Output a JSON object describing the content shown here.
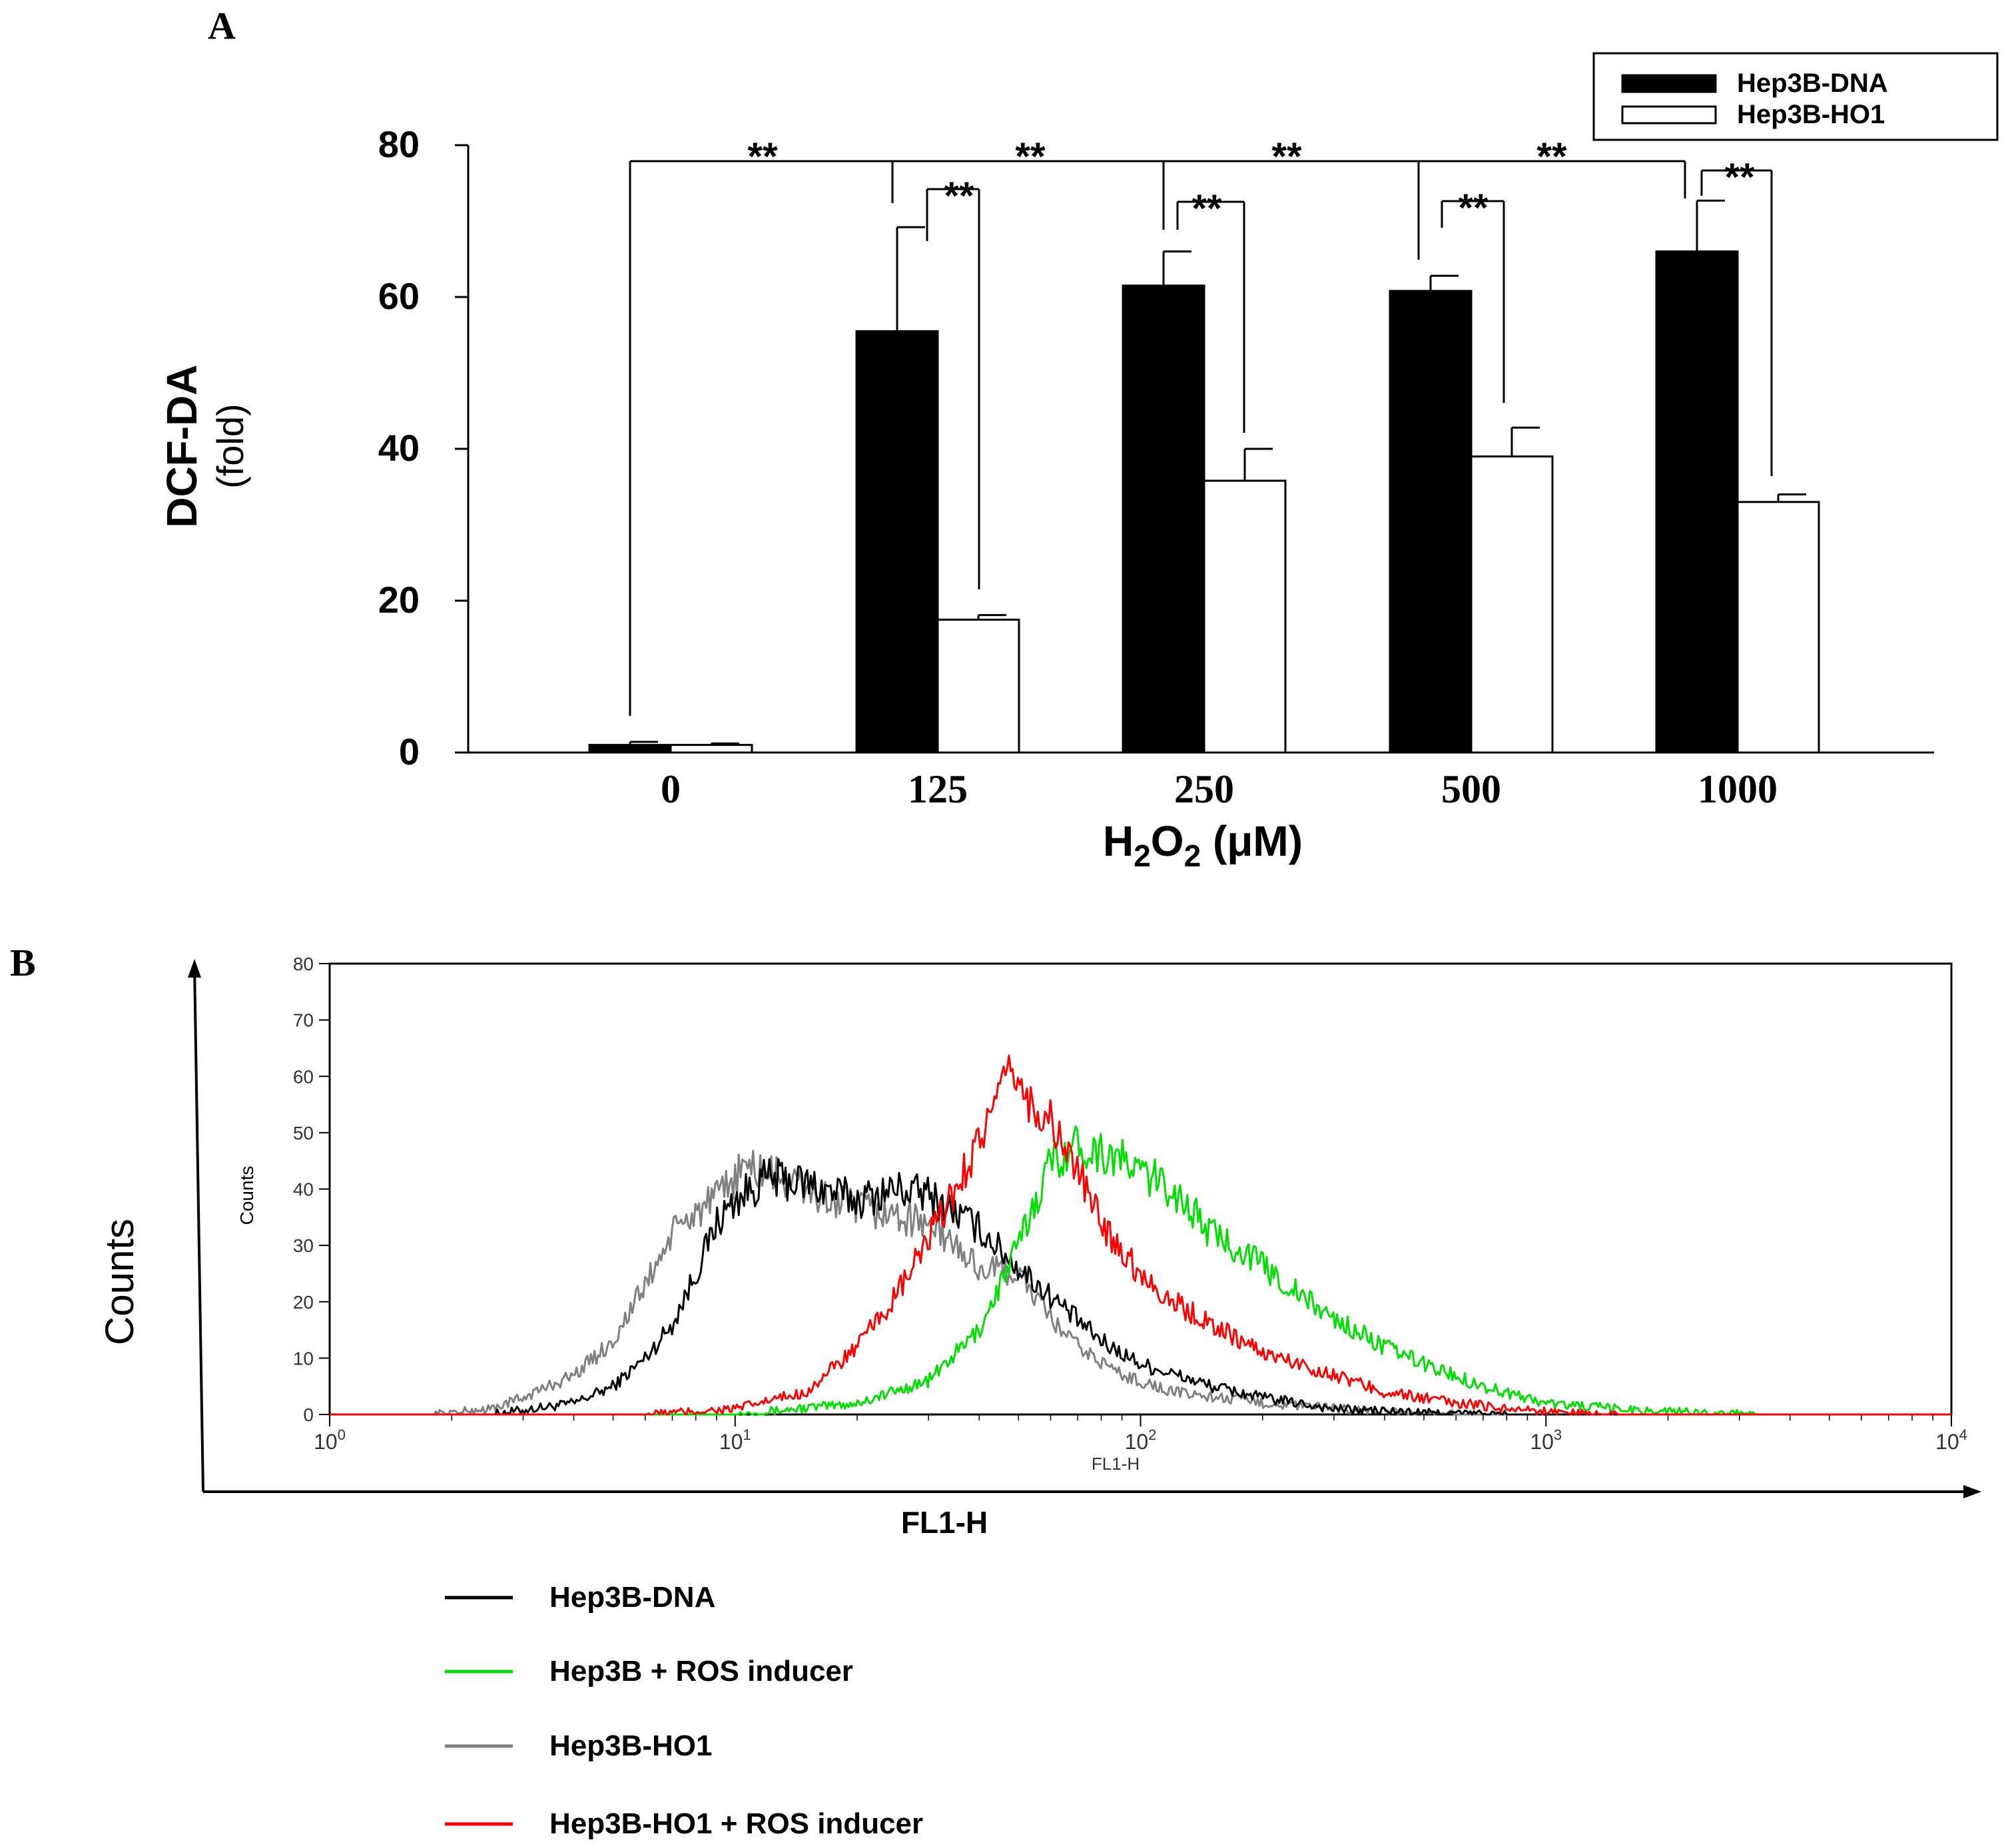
{
  "panel_a_label": "A",
  "panel_b_label": "B",
  "chart_data": [
    {
      "type": "bar",
      "panel": "A",
      "categories": [
        "0",
        "125",
        "250",
        "500",
        "1000"
      ],
      "series": [
        {
          "name": "Hep3B-DNA",
          "color": "#000000",
          "values": [
            1,
            55.5,
            61.5,
            60.8,
            66
          ],
          "errors": [
            0.4,
            13.7,
            4.5,
            2.0,
            6.7
          ]
        },
        {
          "name": "Hep3B-HO1",
          "color": "#ffffff",
          "values": [
            1,
            17.5,
            35.8,
            39,
            33
          ],
          "errors": [
            0.2,
            0.6,
            4.2,
            3.8,
            1.0
          ]
        }
      ],
      "xlabel": "H2O2 (μM)",
      "xlabel_parts": {
        "pre": "H",
        "sub1": "2",
        "mid": "O",
        "sub2": "2",
        "post": " (μM)"
      },
      "ylabel_line1": "DCF-DA",
      "ylabel_line2": "(fold)",
      "yticks": [
        "0",
        "20",
        "40",
        "60",
        "80"
      ],
      "ylim": [
        0,
        80
      ],
      "significance": {
        "marker": "**",
        "count": 8
      },
      "legend_position": "top-right"
    },
    {
      "type": "line",
      "panel": "B",
      "subtype": "flow-cytometry-histogram",
      "xscale": "log",
      "xlim": [
        1,
        10000
      ],
      "ylim": [
        0,
        80
      ],
      "xticks": [
        {
          "base": "10",
          "exp": "0"
        },
        {
          "base": "10",
          "exp": "1"
        },
        {
          "base": "10",
          "exp": "2"
        },
        {
          "base": "10",
          "exp": "3"
        },
        {
          "base": "10",
          "exp": "4"
        }
      ],
      "yticks": [
        "0",
        "10",
        "20",
        "30",
        "40",
        "50",
        "60",
        "70",
        "80"
      ],
      "inner_xlabel": "FL1-H",
      "inner_ylabel": "Counts",
      "outer_xlabel": "FL1-H",
      "outer_ylabel": "Counts",
      "series": [
        {
          "name": "Hep3B-DNA",
          "color": "#000000",
          "peak_x": 12,
          "peak_y": 44,
          "profile": [
            [
              2.5,
              0
            ],
            [
              4,
              2
            ],
            [
              5,
              5
            ],
            [
              6,
              10
            ],
            [
              7,
              16
            ],
            [
              8,
              25
            ],
            [
              9,
              34
            ],
            [
              10,
              38
            ],
            [
              12,
              42
            ],
            [
              15,
              41
            ],
            [
              20,
              38
            ],
            [
              25,
              40
            ],
            [
              30,
              39
            ],
            [
              40,
              33
            ],
            [
              50,
              26
            ],
            [
              60,
              21
            ],
            [
              80,
              13
            ],
            [
              100,
              9
            ],
            [
              150,
              5
            ],
            [
              200,
              3
            ],
            [
              300,
              1
            ],
            [
              500,
              0.3
            ],
            [
              800,
              0
            ]
          ]
        },
        {
          "name": "Hep3B + ROS inducer",
          "color": "#00e000",
          "peak_x": 65,
          "peak_y": 49,
          "profile": [
            [
              10,
              0
            ],
            [
              20,
              2
            ],
            [
              30,
              6
            ],
            [
              40,
              15
            ],
            [
              50,
              30
            ],
            [
              60,
              45
            ],
            [
              70,
              48
            ],
            [
              85,
              46
            ],
            [
              100,
              43
            ],
            [
              120,
              40
            ],
            [
              150,
              32
            ],
            [
              180,
              29
            ],
            [
              220,
              24
            ],
            [
              260,
              20
            ],
            [
              300,
              17
            ],
            [
              400,
              12
            ],
            [
              500,
              9
            ],
            [
              700,
              5
            ],
            [
              1000,
              2
            ],
            [
              1500,
              1
            ],
            [
              2000,
              0.5
            ],
            [
              3500,
              0
            ]
          ]
        },
        {
          "name": "Hep3B-HO1",
          "color": "#808080",
          "peak_x": 10.5,
          "peak_y": 45,
          "profile": [
            [
              1.8,
              0
            ],
            [
              2.5,
              1
            ],
            [
              3,
              3
            ],
            [
              4,
              7
            ],
            [
              5,
              13
            ],
            [
              6,
              23
            ],
            [
              7,
              32
            ],
            [
              8,
              36
            ],
            [
              9,
              38
            ],
            [
              10.5,
              44
            ],
            [
              13,
              42
            ],
            [
              17,
              38
            ],
            [
              22,
              36
            ],
            [
              30,
              34
            ],
            [
              40,
              26
            ],
            [
              50,
              25
            ],
            [
              60,
              17
            ],
            [
              70,
              12
            ],
            [
              90,
              7
            ],
            [
              120,
              4
            ],
            [
              200,
              2
            ],
            [
              400,
              0.5
            ],
            [
              600,
              0
            ]
          ]
        },
        {
          "name": "Hep3B-HO1 + ROS inducer",
          "color": "#ff0000",
          "peak_x": 48,
          "peak_y": 63,
          "profile": [
            [
              6,
              0
            ],
            [
              10,
              1
            ],
            [
              15,
              4
            ],
            [
              20,
              12
            ],
            [
              25,
              21
            ],
            [
              30,
              31
            ],
            [
              35,
              40
            ],
            [
              40,
              49
            ],
            [
              45,
              56
            ],
            [
              48,
              62
            ],
            [
              52,
              56
            ],
            [
              60,
              52
            ],
            [
              70,
              43
            ],
            [
              80,
              34
            ],
            [
              100,
              25
            ],
            [
              120,
              20
            ],
            [
              150,
              16
            ],
            [
              200,
              11
            ],
            [
              300,
              7
            ],
            [
              400,
              4
            ],
            [
              600,
              2
            ],
            [
              1000,
              0.5
            ],
            [
              1500,
              0
            ]
          ]
        }
      ],
      "legend_position": "below"
    }
  ]
}
